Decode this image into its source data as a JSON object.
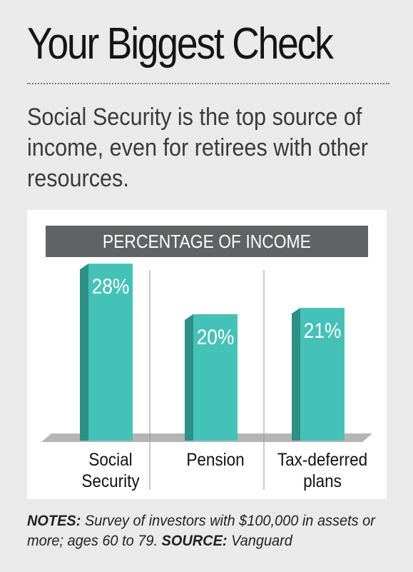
{
  "title": "Your Biggest Check",
  "subtitle": "Social Security is the top source of income, even for retirees with other resources.",
  "chart_data": {
    "type": "bar",
    "title": "PERCENTAGE OF INCOME",
    "categories": [
      "Social Security",
      "Pension",
      "Tax-deferred plans"
    ],
    "category_lines": [
      [
        "Social",
        "Security"
      ],
      [
        "Pension"
      ],
      [
        "Tax-deferred",
        "plans"
      ]
    ],
    "values": [
      28,
      20,
      21
    ],
    "value_labels": [
      "28%",
      "20%",
      "21%"
    ],
    "ylim": [
      0,
      30
    ],
    "grid": false,
    "bar_color": "#45c2b8",
    "bar_side_color": "#2d8f86",
    "shadow_color": "#b5b5b5"
  },
  "notes": {
    "notes_label": "NOTES:",
    "notes_text": " Survey of investors with $100,000 in assets or more; ages 60 to 79. ",
    "source_label": "SOURCE:",
    "source_text": " Vanguard"
  }
}
